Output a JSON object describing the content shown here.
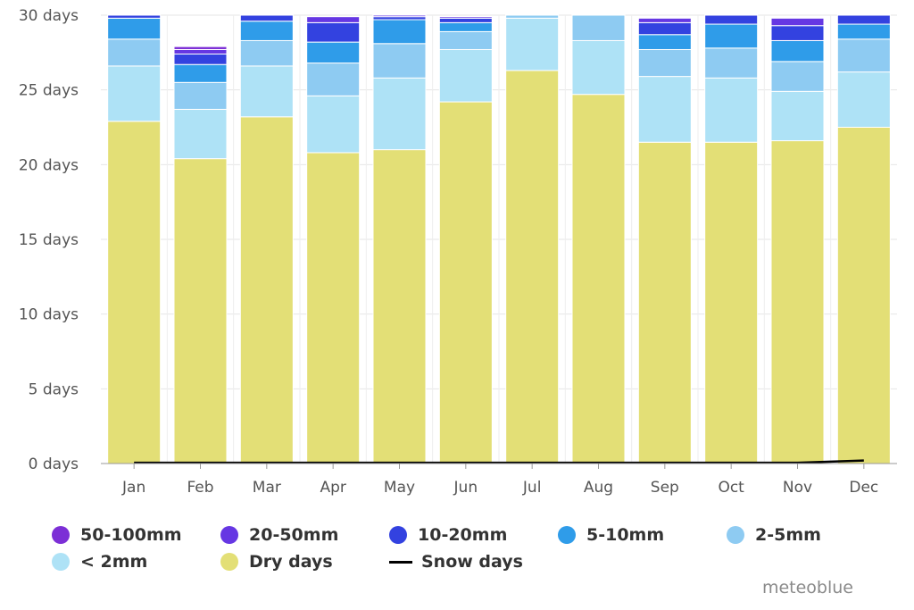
{
  "chart_data": {
    "type": "bar",
    "stacked": true,
    "categories": [
      "Jan",
      "Feb",
      "Mar",
      "Apr",
      "May",
      "Jun",
      "Jul",
      "Aug",
      "Sep",
      "Oct",
      "Nov",
      "Dec"
    ],
    "ylim": [
      0,
      30
    ],
    "yticks": [
      0,
      5,
      10,
      15,
      20,
      25,
      30
    ],
    "ytick_labels": [
      "0 days",
      "5 days",
      "10 days",
      "15 days",
      "20 days",
      "25 days",
      "30 days"
    ],
    "grid": true,
    "legend_position": "bottom",
    "series": [
      {
        "name": "Dry days",
        "color": "#e3df76",
        "values": [
          22.9,
          20.4,
          23.2,
          20.8,
          21.0,
          24.2,
          26.3,
          24.7,
          21.5,
          21.5,
          21.6,
          22.5
        ]
      },
      {
        "name": "< 2mm",
        "color": "#aee2f6",
        "values": [
          3.7,
          3.3,
          3.4,
          3.8,
          4.8,
          3.5,
          3.5,
          3.6,
          4.4,
          4.3,
          3.3,
          3.7
        ]
      },
      {
        "name": "2-5mm",
        "color": "#8ecbf2",
        "values": [
          1.8,
          1.8,
          1.7,
          2.2,
          2.3,
          1.2,
          0.2,
          1.7,
          1.8,
          2.0,
          2.0,
          2.2
        ]
      },
      {
        "name": "5-10mm",
        "color": "#2f9ce9",
        "values": [
          1.4,
          1.2,
          1.3,
          1.4,
          1.6,
          0.6,
          0.0,
          0.0,
          1.0,
          1.6,
          1.4,
          1.0
        ]
      },
      {
        "name": "10-20mm",
        "color": "#3342e0",
        "values": [
          0.2,
          0.7,
          0.4,
          1.3,
          0.2,
          0.3,
          0.0,
          0.0,
          0.8,
          0.6,
          1.0,
          0.6
        ]
      },
      {
        "name": "20-50mm",
        "color": "#6637e3",
        "values": [
          0.0,
          0.3,
          0.0,
          0.4,
          0.1,
          0.1,
          0.0,
          0.0,
          0.3,
          0.0,
          0.5,
          0.0
        ]
      },
      {
        "name": "50-100mm",
        "color": "#7c2fd6",
        "values": [
          0.0,
          0.2,
          0.0,
          0.0,
          0.0,
          0.0,
          0.0,
          0.0,
          0.0,
          0.0,
          0.0,
          0.0
        ]
      }
    ],
    "line_series": [
      {
        "name": "Snow days",
        "color": "#000000",
        "values": [
          0.05,
          0.05,
          0.05,
          0.05,
          0.05,
          0.05,
          0.05,
          0.05,
          0.05,
          0.05,
          0.05,
          0.2
        ]
      }
    ]
  },
  "legend": {
    "items": [
      {
        "label": "50-100mm",
        "color": "#7c2fd6",
        "kind": "dot"
      },
      {
        "label": "20-50mm",
        "color": "#6637e3",
        "kind": "dot"
      },
      {
        "label": "10-20mm",
        "color": "#3342e0",
        "kind": "dot"
      },
      {
        "label": "5-10mm",
        "color": "#2f9ce9",
        "kind": "dot"
      },
      {
        "label": "2-5mm",
        "color": "#8ecbf2",
        "kind": "dot"
      },
      {
        "label": "< 2mm",
        "color": "#aee2f6",
        "kind": "dot"
      },
      {
        "label": "Dry days",
        "color": "#e3df76",
        "kind": "dot"
      },
      {
        "label": "Snow days",
        "color": "#000000",
        "kind": "line"
      }
    ]
  },
  "credit": "meteoblue"
}
